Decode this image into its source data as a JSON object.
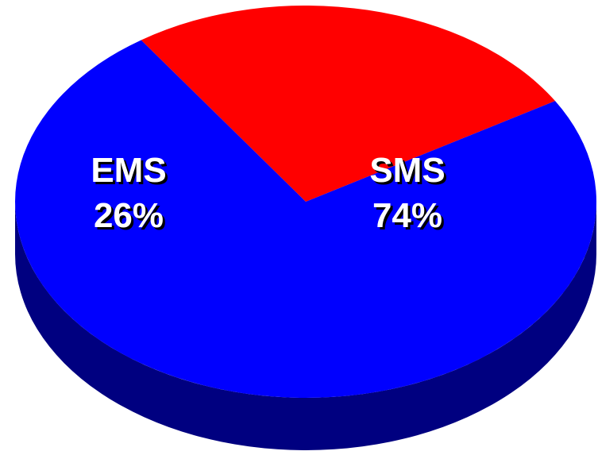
{
  "chart_data": {
    "type": "pie",
    "style": "3d",
    "title": "",
    "slices": [
      {
        "label": "EMS",
        "value": 26,
        "value_label": "26%",
        "color": "#ff0000",
        "side_color": "#800000"
      },
      {
        "label": "SMS",
        "value": 74,
        "value_label": "74%",
        "color": "#0000ff",
        "side_color": "#000080"
      }
    ],
    "legend": "none",
    "label_color": "#ffffff"
  }
}
